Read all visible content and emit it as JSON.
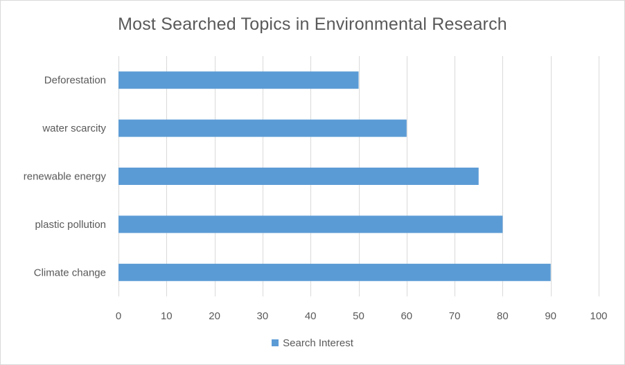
{
  "chart_data": {
    "type": "bar",
    "orientation": "horizontal",
    "title": "Most Searched Topics in Environmental Research",
    "categories": [
      "Deforestation",
      "water scarcity",
      "renewable energy",
      "plastic pollution",
      "Climate change"
    ],
    "series": [
      {
        "name": "Search Interest",
        "values": [
          50,
          60,
          75,
          80,
          90
        ],
        "color": "#5b9bd5"
      }
    ],
    "xlim": [
      0,
      100
    ],
    "xticks": [
      "0",
      "10",
      "20",
      "30",
      "40",
      "50",
      "60",
      "70",
      "80",
      "90",
      "100"
    ],
    "grid": true,
    "legend_position": "bottom"
  }
}
